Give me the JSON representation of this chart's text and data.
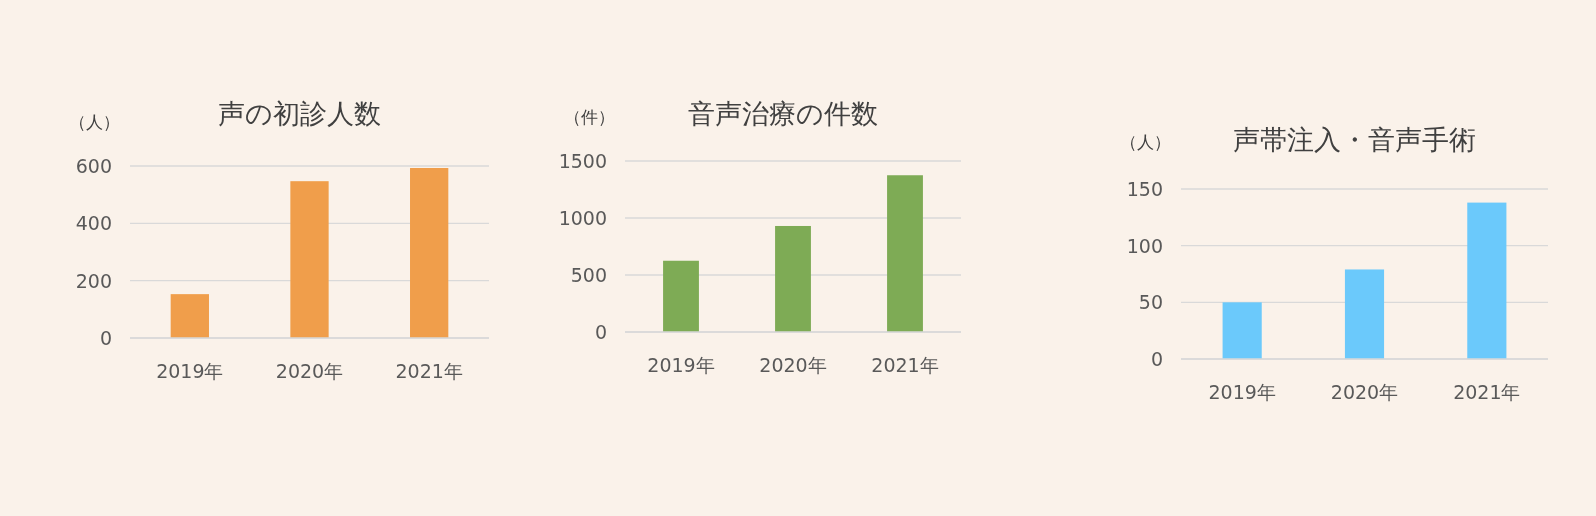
{
  "chart_data": [
    {
      "type": "bar",
      "title": "声の初診人数",
      "ylabel": "（人）",
      "categories": [
        "2019年",
        "2020年",
        "2021年"
      ],
      "series": [
        {
          "color": "#f09e4b",
          "values": [
            153,
            547,
            593
          ]
        }
      ],
      "ylim": [
        0,
        600
      ],
      "yticks": [
        0,
        200,
        400,
        600
      ],
      "grid": "y"
    },
    {
      "type": "bar",
      "title": "音声治療の件数",
      "ylabel": "（件）",
      "categories": [
        "2019年",
        "2020年",
        "2021年"
      ],
      "series": [
        {
          "color": "#7eab55",
          "values": [
            625,
            930,
            1375
          ]
        }
      ],
      "ylim": [
        0,
        1500
      ],
      "yticks": [
        0,
        500,
        1000,
        1500
      ],
      "grid": "y"
    },
    {
      "type": "bar",
      "title": "声帯注入・音声手術",
      "ylabel": "（人）",
      "categories": [
        "2019年",
        "2020年",
        "2021年"
      ],
      "series": [
        {
          "color": "#6bc9fb",
          "values": [
            50,
            79,
            138
          ]
        }
      ],
      "ylim": [
        0,
        150
      ],
      "yticks": [
        0,
        50,
        100,
        150
      ],
      "grid": "y"
    }
  ]
}
